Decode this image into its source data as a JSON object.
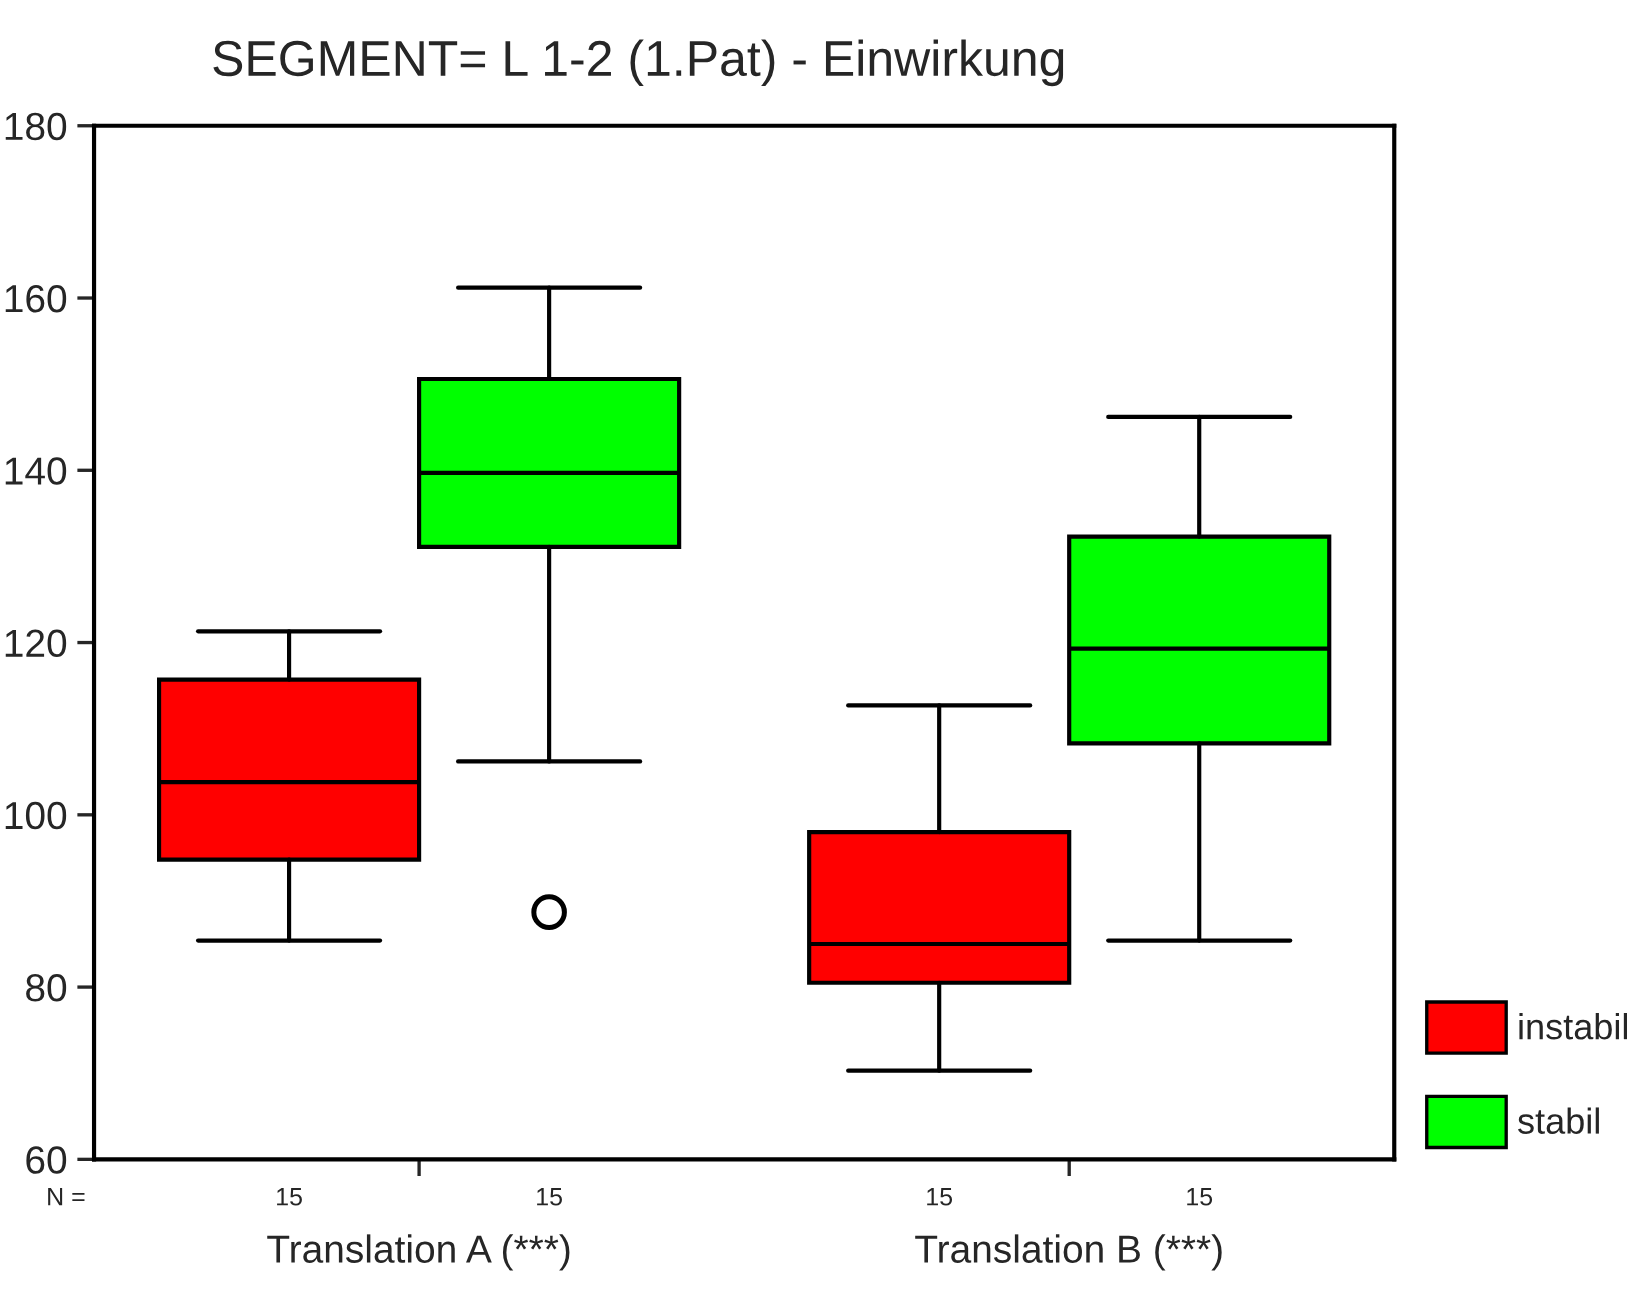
{
  "chart_data": {
    "type": "box",
    "title": "SEGMENT= L 1-2 (1.Pat) - Einwirkung",
    "categories": [
      "Translation A (***)",
      "Translation B (***)"
    ],
    "series": [
      {
        "name": "instabil",
        "color": "#ff0000",
        "boxes": [
          {
            "low": 85.4,
            "q1": 94.8,
            "median": 103.8,
            "q3": 115.7,
            "high": 121.3
          },
          {
            "low": 70.3,
            "q1": 80.5,
            "median": 85,
            "q3": 98,
            "high": 112.7
          }
        ]
      },
      {
        "name": "stabil",
        "color": "#00ff00",
        "boxes": [
          {
            "low": 106.2,
            "q1": 131.1,
            "median": 139.7,
            "q3": 150.6,
            "high": 161.2,
            "outliers": [
              88.7
            ]
          },
          {
            "low": 85.4,
            "q1": 108.3,
            "median": 119.3,
            "q3": 132.3,
            "high": 146.2
          }
        ]
      }
    ],
    "annotations": [
      "N =",
      "15",
      "15",
      "15",
      "15"
    ],
    "ylim": [
      60,
      180
    ],
    "yticks": [
      60,
      80,
      100,
      120,
      140,
      160,
      180
    ],
    "grid": false,
    "legend": "bottom right"
  }
}
